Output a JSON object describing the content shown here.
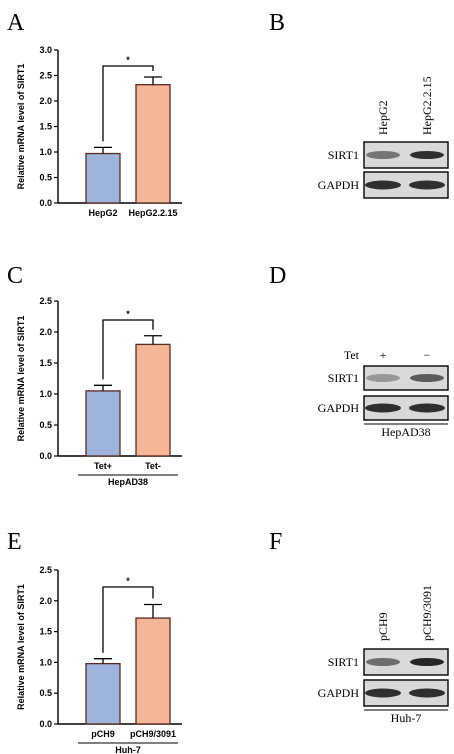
{
  "panels": {
    "A": "A",
    "B": "B",
    "C": "C",
    "D": "D",
    "E": "E",
    "F": "F"
  },
  "colors": {
    "bar_control": "#9fb4dc",
    "bar_treated": "#f5b597",
    "axis": "#000000"
  },
  "chart_data": [
    {
      "panel": "A",
      "type": "bar",
      "categories": [
        "HepG2",
        "HepG2.2.15"
      ],
      "values": [
        0.97,
        2.32
      ],
      "errors": [
        0.12,
        0.15
      ],
      "ylabel": "Relative mRNA level of SIRT1",
      "ylim": [
        0,
        3.0
      ],
      "yticks": [
        "0.0",
        "0.5",
        "1.0",
        "1.5",
        "2.0",
        "2.5",
        "3.0"
      ],
      "group_label": "",
      "significance": "*"
    },
    {
      "panel": "C",
      "type": "bar",
      "categories": [
        "Tet+",
        "Tet-"
      ],
      "values": [
        1.05,
        1.8
      ],
      "errors": [
        0.09,
        0.14
      ],
      "ylabel": "Relative mRNA level of SIRT1",
      "ylim": [
        0,
        2.5
      ],
      "yticks": [
        "0.0",
        "0.5",
        "1.0",
        "1.5",
        "2.0",
        "2.5"
      ],
      "group_label": "HepAD38",
      "significance": "*"
    },
    {
      "panel": "E",
      "type": "bar",
      "categories": [
        "pCH9",
        "pCH9/3091"
      ],
      "values": [
        0.98,
        1.72
      ],
      "errors": [
        0.08,
        0.22
      ],
      "ylabel": "Relative mRNA level of SIRT1",
      "ylim": [
        0,
        2.5
      ],
      "yticks": [
        "0.0",
        "0.5",
        "1.0",
        "1.5",
        "2.0",
        "2.5"
      ],
      "group_label": "Huh-7",
      "significance": "*"
    }
  ],
  "blots": {
    "B": {
      "lanes": [
        "HepG2",
        "HepG2.2.15"
      ],
      "rows": [
        "SIRT1",
        "GAPDH"
      ],
      "sirt1_intensity": [
        0.55,
        0.95
      ],
      "gapdh_intensity": [
        0.95,
        0.95
      ],
      "group_label": ""
    },
    "D": {
      "treatment_label": "Tet",
      "lanes": [
        "+",
        "−"
      ],
      "rows": [
        "SIRT1",
        "GAPDH"
      ],
      "sirt1_intensity": [
        0.35,
        0.7
      ],
      "gapdh_intensity": [
        0.95,
        0.95
      ],
      "group_label": "HepAD38"
    },
    "F": {
      "lanes": [
        "pCH9",
        "pCH9/3091"
      ],
      "rows": [
        "SIRT1",
        "GAPDH"
      ],
      "sirt1_intensity": [
        0.6,
        1.0
      ],
      "gapdh_intensity": [
        0.95,
        0.95
      ],
      "group_label": "Huh-7"
    }
  }
}
